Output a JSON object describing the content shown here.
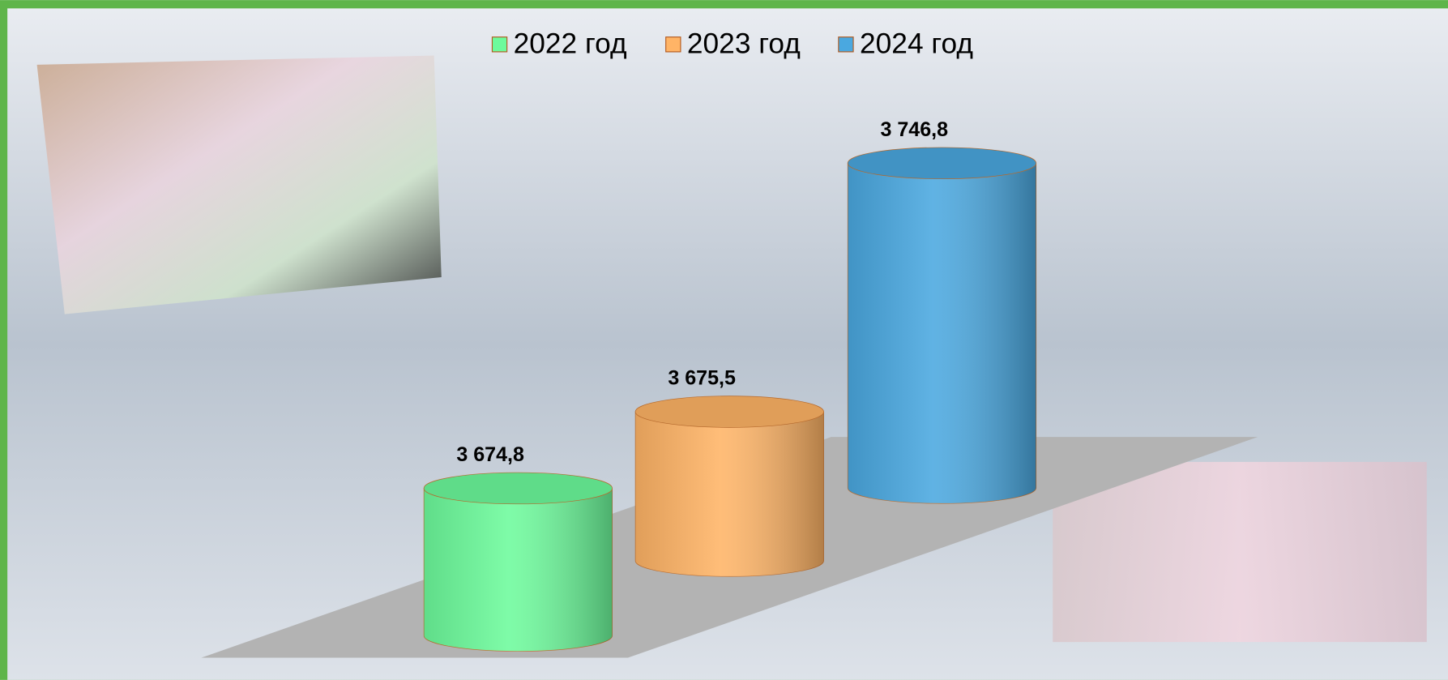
{
  "chart_data": {
    "type": "cylinder",
    "series": [
      {
        "name": "2022 год",
        "color": "#6dfb9c",
        "values": [
          3674.8
        ],
        "value_labels": [
          "3 674,8"
        ]
      },
      {
        "name": "2023 год",
        "color": "#ffb466",
        "values": [
          3675.5
        ],
        "value_labels": [
          "3 675,5"
        ]
      },
      {
        "name": "2024 год",
        "color": "#4aa8e0",
        "values": [
          3746.8
        ],
        "value_labels": [
          "3 746,8"
        ]
      }
    ],
    "ylim": [
      3615,
      3750
    ],
    "legend": "top"
  }
}
